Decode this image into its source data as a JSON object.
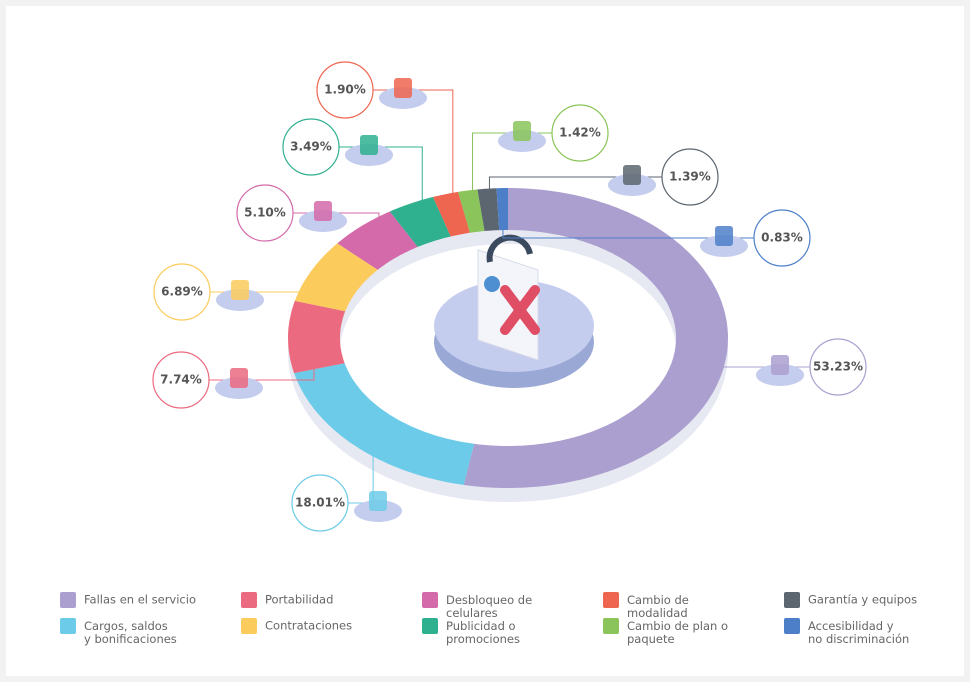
{
  "chart_data": {
    "type": "donut",
    "categories": [
      "Fallas en el servicio",
      "Cargos, saldos y bonificaciones",
      "Portabilidad",
      "Contrataciones",
      "Desbloqueo de celulares",
      "Publicidad o promociones",
      "Cambio de modalidad",
      "Cambio de plan o paquete",
      "Garantía y equipos",
      "Accesibilidad y no discriminación"
    ],
    "values": [
      53.23,
      18.01,
      7.74,
      6.89,
      5.1,
      3.49,
      1.9,
      1.42,
      1.39,
      0.83
    ],
    "value_labels": [
      "53.23%",
      "18.01%",
      "7.74%",
      "6.89%",
      "5.10%",
      "3.49%",
      "1.90%",
      "1.42%",
      "1.39%",
      "0.83%"
    ],
    "colors": [
      "#ab9fcf",
      "#6ccbe8",
      "#eb6a80",
      "#fbcb5c",
      "#d46aaa",
      "#2fb08f",
      "#ee6550",
      "#8ac45a",
      "#5c6670",
      "#4d7fc8"
    ]
  }
}
